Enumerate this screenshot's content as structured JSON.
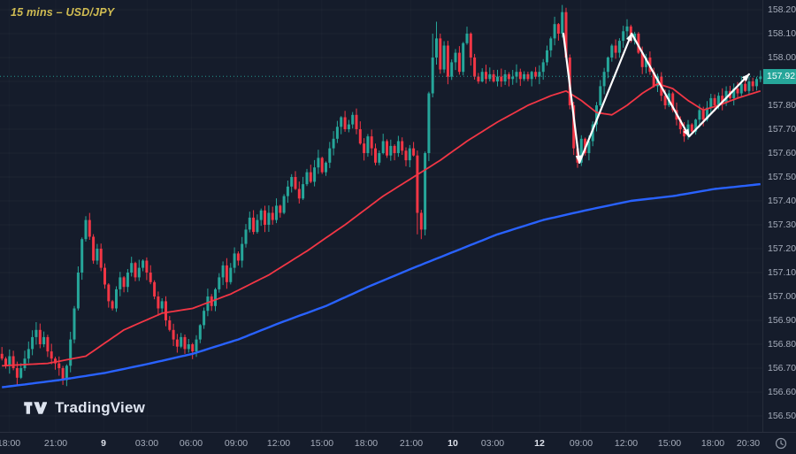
{
  "title_note": {
    "text": "15 mins – USD/JPY"
  },
  "branding": {
    "name": "TradingView"
  },
  "colors": {
    "background": "#151c2b",
    "up": "#26a69a",
    "down": "#f23645",
    "ma_fast": "#f23645",
    "ma_slow": "#2962ff",
    "axis_text": "#a6adbb",
    "axis_text_major": "#dde1ea",
    "badge_bg": "#26a69a",
    "badge_text": "#ffffff",
    "title_note": "#d0bc52",
    "watermark": "#dde3ef",
    "arrow": "#ffffff"
  },
  "chart_data": {
    "type": "candlestick",
    "symbol": "USD/JPY",
    "interval": "15 mins",
    "last_price": 157.921,
    "last_price_label": "157.921",
    "price_line": 157.921,
    "y_axis": {
      "top_tick": 158.2,
      "tick_step": 0.1,
      "min": 156.45,
      "max": 158.25,
      "tick_labels": [
        "158.200",
        "158.100",
        "158.000",
        "157.900",
        "157.800",
        "157.700",
        "157.600",
        "157.500",
        "157.400",
        "157.300",
        "157.200",
        "157.100",
        "157.000",
        "156.900",
        "156.800",
        "156.700",
        "156.600",
        "156.500"
      ]
    },
    "x_axis": {
      "labels": [
        {
          "text": "18:00",
          "pos": 0.012,
          "major": false
        },
        {
          "text": "21:00",
          "pos": 0.073,
          "major": false
        },
        {
          "text": "9",
          "pos": 0.136,
          "major": true
        },
        {
          "text": "03:00",
          "pos": 0.193,
          "major": false
        },
        {
          "text": "06:00",
          "pos": 0.251,
          "major": false
        },
        {
          "text": "09:00",
          "pos": 0.31,
          "major": false
        },
        {
          "text": "12:00",
          "pos": 0.365,
          "major": false
        },
        {
          "text": "15:00",
          "pos": 0.422,
          "major": false
        },
        {
          "text": "18:00",
          "pos": 0.48,
          "major": false
        },
        {
          "text": "21:00",
          "pos": 0.539,
          "major": false
        },
        {
          "text": "10",
          "pos": 0.594,
          "major": true
        },
        {
          "text": "03:00",
          "pos": 0.646,
          "major": false
        },
        {
          "text": "12",
          "pos": 0.708,
          "major": true
        },
        {
          "text": "09:00",
          "pos": 0.762,
          "major": false
        },
        {
          "text": "12:00",
          "pos": 0.821,
          "major": false
        },
        {
          "text": "15:00",
          "pos": 0.878,
          "major": false
        },
        {
          "text": "18:00",
          "pos": 0.935,
          "major": false
        },
        {
          "text": "20:30",
          "pos": 0.981,
          "major": false
        }
      ]
    },
    "candles": {
      "open_first": 156.76,
      "wick_amp": 0.03,
      "closes": [
        156.74,
        156.71,
        156.75,
        156.7,
        156.66,
        156.7,
        156.74,
        156.78,
        156.83,
        156.86,
        156.8,
        156.83,
        156.77,
        156.74,
        156.72,
        156.7,
        156.65,
        156.71,
        156.82,
        156.95,
        157.1,
        157.24,
        157.32,
        157.25,
        157.15,
        157.2,
        157.12,
        157.05,
        156.98,
        156.95,
        157.03,
        157.08,
        157.04,
        157.1,
        157.14,
        157.08,
        157.12,
        157.15,
        157.1,
        157.06,
        157.0,
        156.95,
        156.98,
        156.9,
        156.86,
        156.82,
        156.79,
        156.83,
        156.78,
        156.8,
        156.77,
        156.82,
        156.88,
        156.94,
        157.0,
        156.96,
        157.03,
        157.08,
        157.13,
        157.06,
        157.12,
        157.18,
        157.15,
        157.22,
        157.28,
        157.33,
        157.27,
        157.32,
        157.36,
        157.3,
        157.35,
        157.32,
        157.38,
        157.35,
        157.42,
        157.46,
        157.5,
        157.45,
        157.41,
        157.47,
        157.52,
        157.48,
        157.54,
        157.58,
        157.52,
        157.56,
        157.62,
        157.66,
        157.71,
        157.75,
        157.7,
        157.72,
        157.76,
        157.7,
        157.64,
        157.6,
        157.67,
        157.62,
        157.56,
        157.6,
        157.65,
        157.59,
        157.63,
        157.6,
        157.65,
        157.61,
        157.57,
        157.62,
        157.59,
        157.35,
        157.28,
        157.6,
        157.85,
        158.0,
        158.08,
        157.95,
        158.05,
        157.92,
        157.98,
        158.02,
        157.94,
        158.06,
        158.1,
        158.0,
        157.92,
        157.9,
        157.94,
        157.91,
        157.93,
        157.9,
        157.92,
        157.9,
        157.93,
        157.91,
        157.92,
        157.94,
        157.91,
        157.93,
        157.91,
        157.94,
        157.92,
        157.94,
        157.98,
        158.03,
        158.08,
        158.14,
        158.1,
        158.19,
        158.0,
        157.8,
        157.62,
        157.56,
        157.66,
        157.6,
        157.65,
        157.72,
        157.8,
        157.88,
        157.94,
        158.0,
        158.05,
        158.02,
        158.07,
        158.11,
        158.13,
        158.07,
        158.1,
        158.02,
        157.96,
        158.0,
        157.94,
        157.88,
        157.92,
        157.84,
        157.8,
        157.85,
        157.78,
        157.74,
        157.7,
        157.67,
        157.72,
        157.69,
        157.74,
        157.78,
        157.74,
        157.79,
        157.83,
        157.8,
        157.84,
        157.81,
        157.86,
        157.83,
        157.87,
        157.85,
        157.89,
        157.86,
        157.9,
        157.88,
        157.91,
        157.92
      ],
      "extra_wicks": {
        "16": {
          "low": 156.63
        },
        "109": {
          "low": 157.26
        },
        "110": {
          "low": 157.24
        },
        "113": {
          "high": 158.1
        },
        "114": {
          "high": 158.15
        },
        "122": {
          "high": 158.12
        },
        "147": {
          "high": 158.22
        },
        "164": {
          "high": 158.16
        }
      }
    },
    "overlays": {
      "ma_fast": {
        "name": "fast moving average (red)",
        "anchors": [
          [
            0,
            156.71
          ],
          [
            12,
            156.72
          ],
          [
            22,
            156.75
          ],
          [
            32,
            156.86
          ],
          [
            42,
            156.93
          ],
          [
            50,
            156.95
          ],
          [
            60,
            157.01
          ],
          [
            70,
            157.09
          ],
          [
            80,
            157.19
          ],
          [
            90,
            157.3
          ],
          [
            100,
            157.42
          ],
          [
            108,
            157.5
          ],
          [
            115,
            157.57
          ],
          [
            122,
            157.65
          ],
          [
            130,
            157.73
          ],
          [
            138,
            157.8
          ],
          [
            144,
            157.84
          ],
          [
            148,
            157.86
          ],
          [
            152,
            157.82
          ],
          [
            156,
            157.77
          ],
          [
            160,
            157.76
          ],
          [
            164,
            157.8
          ],
          [
            168,
            157.85
          ],
          [
            172,
            157.89
          ],
          [
            176,
            157.87
          ],
          [
            180,
            157.82
          ],
          [
            184,
            157.78
          ],
          [
            188,
            157.8
          ],
          [
            193,
            157.83
          ],
          [
            199,
            157.86
          ]
        ]
      },
      "ma_slow": {
        "name": "slow moving average (blue)",
        "anchors": [
          [
            0,
            156.62
          ],
          [
            15,
            156.65
          ],
          [
            27,
            156.68
          ],
          [
            39,
            156.72
          ],
          [
            50,
            156.76
          ],
          [
            62,
            156.82
          ],
          [
            73,
            156.89
          ],
          [
            85,
            156.96
          ],
          [
            96,
            157.04
          ],
          [
            108,
            157.12
          ],
          [
            119,
            157.19
          ],
          [
            130,
            157.26
          ],
          [
            142,
            157.32
          ],
          [
            153,
            157.36
          ],
          [
            165,
            157.4
          ],
          [
            176,
            157.42
          ],
          [
            187,
            157.45
          ],
          [
            199,
            157.47
          ]
        ]
      }
    },
    "arrows": {
      "name": "white zigzag trend annotation",
      "points": [
        [
          147.3,
          158.1
        ],
        [
          151.5,
          157.56
        ],
        [
          165.2,
          158.1
        ],
        [
          180.3,
          157.67
        ],
        [
          196.0,
          157.93
        ]
      ]
    }
  }
}
